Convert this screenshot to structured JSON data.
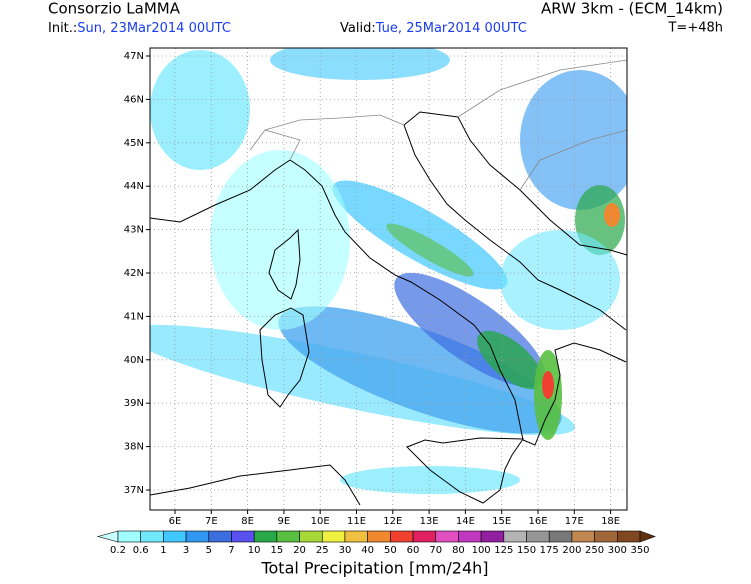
{
  "header": {
    "left_title": "Consorzio LaMMA",
    "right_title": "ARW 3km - (ECM_14km)",
    "init_label": "Init.:",
    "init_value": "Sun, 23Mar2014 00UTC",
    "valid_label": "Valid:",
    "valid_value": "Tue, 25Mar2014 00UTC",
    "lead_time": "T=+48h"
  },
  "map": {
    "lat_labels": [
      "47N",
      "46N",
      "45N",
      "44N",
      "43N",
      "42N",
      "41N",
      "40N",
      "39N",
      "38N",
      "37N"
    ],
    "lon_labels": [
      "6E",
      "7E",
      "8E",
      "9E",
      "10E",
      "11E",
      "12E",
      "13E",
      "14E",
      "15E",
      "16E",
      "17E",
      "18E"
    ]
  },
  "legend": {
    "title": "Total Precipitation [mm/24h]",
    "levels": [
      "0.2",
      "0.6",
      "1",
      "3",
      "5",
      "7",
      "10",
      "15",
      "20",
      "25",
      "30",
      "40",
      "50",
      "60",
      "70",
      "80",
      "100",
      "125",
      "150",
      "175",
      "200",
      "250",
      "300",
      "350"
    ],
    "under_color": "#c8ffff",
    "colors": [
      "#a0ffff",
      "#70e8ff",
      "#40c8ff",
      "#3098f0",
      "#3c6ee0",
      "#5a50f0",
      "#28a848",
      "#58c040",
      "#a8d838",
      "#f0f040",
      "#f0c040",
      "#f08830",
      "#f04030",
      "#e02060",
      "#e050c0",
      "#c038c0",
      "#9020a0",
      "#b4b4b4",
      "#969696",
      "#787878",
      "#c08850",
      "#a06838",
      "#804820"
    ],
    "over_color": "#603010"
  }
}
